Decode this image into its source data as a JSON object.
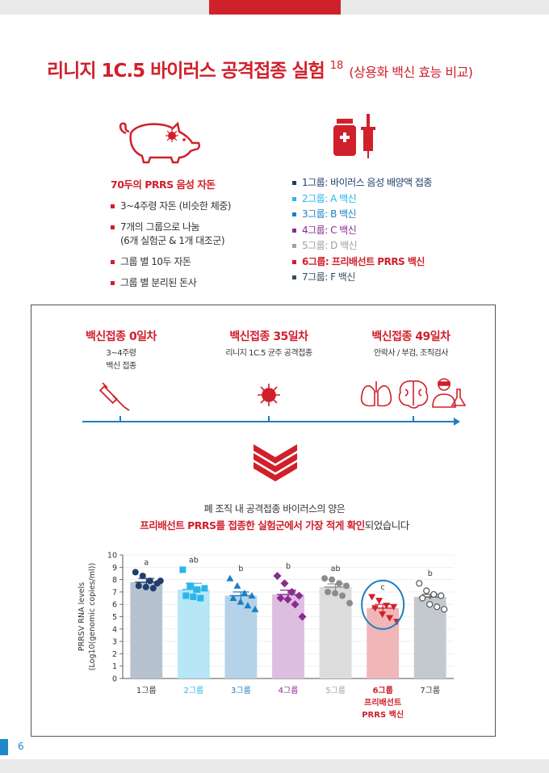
{
  "header": {
    "title": "리니지 1C.5 바이러스 공격접종 실험",
    "title_sup": "18",
    "title_sub": "(상용화 백신 효능 비교)"
  },
  "setup": {
    "head": "70두의 PRRS 음성 자돈",
    "items": [
      {
        "line1": "3~4주령 자돈 (비슷한 체중)",
        "line2": ""
      },
      {
        "line1": "7개의 그룹으로 나눔",
        "line2": "(6개 실험군 & 1개 대조군)"
      },
      {
        "line1": "그룹 별 10두 자돈",
        "line2": ""
      },
      {
        "line1": "그룹 별 분리된 돈사",
        "line2": ""
      }
    ]
  },
  "groups_legend": [
    {
      "label": "1그룹: 바이러스 음성 배양액 접종",
      "color": "#1f3d6e",
      "bold": false
    },
    {
      "label": "2그룹: A 백신",
      "color": "#2bb5e8",
      "bold": false
    },
    {
      "label": "3그룹: B 백신",
      "color": "#1e7fc2",
      "bold": false
    },
    {
      "label": "4그룹: C 백신",
      "color": "#8b2a8f",
      "bold": false
    },
    {
      "label": "5그룹: D 백신",
      "color": "#a0a0a0",
      "bold": false
    },
    {
      "label": "6그룹: 프리배선트 PRRS 백신",
      "color": "#d0202b",
      "bold": true
    },
    {
      "label": "7그룹: F 백신",
      "color": "#2f4f5f",
      "bold": false
    }
  ],
  "timeline": [
    {
      "head": "백신접종 0일차",
      "sub1": "3~4주령",
      "sub2": "백신 접종"
    },
    {
      "head": "백신접종 35일차",
      "sub1": "리니지 1C.5 균주 공격접종",
      "sub2": ""
    },
    {
      "head": "백신접종 49일차",
      "sub1": "안락사 / 부검, 조직검사",
      "sub2": ""
    }
  ],
  "message": {
    "line1": "폐 조직 내 공격접종 바이러스의 양은",
    "line2_bold": "프리배선트 PRRS를 접종한 실험군에서 가장 적게 확인",
    "line2_rest": "되었습니다"
  },
  "chart_data": {
    "type": "bar",
    "ylabel_line1": "PRRSV RNA levels",
    "ylabel_line2": "(Log10(genomic copies/ml))",
    "ylim": [
      0,
      10
    ],
    "yticks": [
      0,
      1,
      2,
      3,
      4,
      5,
      6,
      7,
      8,
      9,
      10
    ],
    "categories": [
      "1그룹",
      "2그룹",
      "3그룹",
      "4그룹",
      "5그룹",
      "6그룹",
      "7그룹"
    ],
    "extra_label": "프리배선트 PRRS 백신",
    "values": [
      7.8,
      7.2,
      6.7,
      6.8,
      7.4,
      5.7,
      6.6
    ],
    "errors": [
      0.3,
      0.5,
      0.3,
      0.35,
      0.25,
      0.3,
      0.2
    ],
    "letters": [
      "a",
      "ab",
      "b",
      "b",
      "ab",
      "c",
      "b"
    ],
    "bar_colors": [
      "#b6c2cf",
      "#b7e6f7",
      "#b4d3e9",
      "#ddbde0",
      "#dcdcdc",
      "#f1b6b8",
      "#c3c9cf"
    ],
    "marker_colors": [
      "#1f3d6e",
      "#2bb5e8",
      "#1e7fc2",
      "#8b2a8f",
      "#8c8c8c",
      "#d0202b",
      "#555555"
    ],
    "marker_shapes": [
      "circle",
      "square",
      "triangle-up",
      "diamond",
      "circle",
      "triangle-down",
      "circle-open"
    ],
    "label_colors": [
      "#333333",
      "#2bb5e8",
      "#1e7fc2",
      "#8b2a8f",
      "#a0a0a0",
      "#d0202b",
      "#333333"
    ],
    "points": [
      [
        8.6,
        8.3,
        7.9,
        7.7,
        7.5,
        7.4,
        7.3,
        7.9
      ],
      [
        8.8,
        7.5,
        7.2,
        7.3,
        6.7,
        6.6,
        6.5
      ],
      [
        8.1,
        7.5,
        6.9,
        6.7,
        6.5,
        6.2,
        5.9,
        5.6
      ],
      [
        8.3,
        7.7,
        7.0,
        6.7,
        6.5,
        6.4,
        6.0,
        5.0
      ],
      [
        8.1,
        8.0,
        7.7,
        7.5,
        7.0,
        6.9,
        6.7,
        6.1
      ],
      [
        6.6,
        6.3,
        5.9,
        5.8,
        5.7,
        5.2,
        4.9,
        4.6
      ],
      [
        7.7,
        7.1,
        6.8,
        6.7,
        6.5,
        6.0,
        5.8,
        5.6
      ]
    ],
    "highlight_index": 5
  },
  "page": {
    "number": "6"
  }
}
